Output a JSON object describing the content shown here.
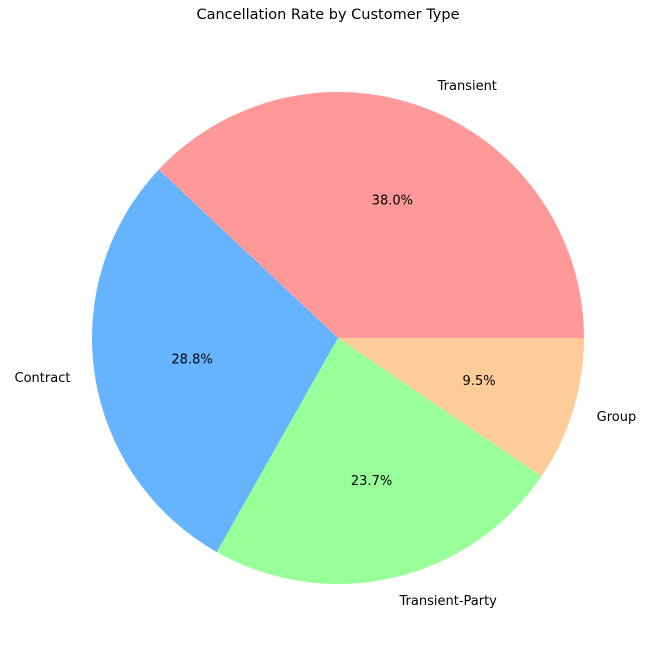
{
  "chart_data": {
    "type": "pie",
    "title": "Cancellation Rate by Customer Type",
    "slices": [
      {
        "label": "Transient",
        "value": 38.0,
        "pct_label": "38.0%",
        "color": "#ff9999"
      },
      {
        "label": "Contract",
        "value": 28.8,
        "pct_label": "28.8%",
        "color": "#66b3ff"
      },
      {
        "label": "Transient-Party",
        "value": 23.7,
        "pct_label": "23.7%",
        "color": "#99ff99"
      },
      {
        "label": "Group",
        "value": 9.5,
        "pct_label": "9.5%",
        "color": "#ffcc99"
      }
    ],
    "start_angle_deg": 0,
    "direction": "counterclockwise",
    "legend": "none"
  }
}
